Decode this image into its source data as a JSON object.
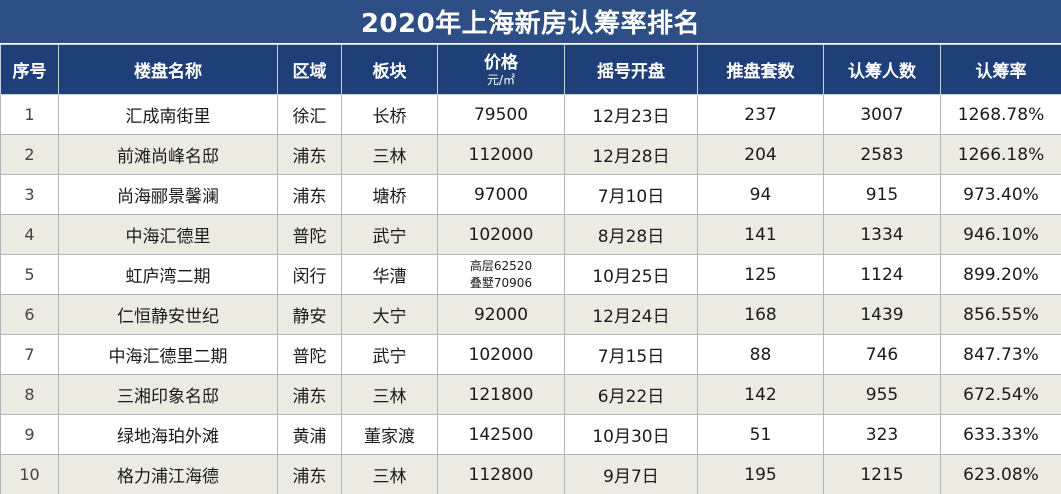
{
  "title": "2020年上海新房认筹率排名",
  "headers": {
    "rank": "序号",
    "name": "楼盘名称",
    "district": "区域",
    "block": "板块",
    "price": "价格",
    "price_unit": "元/㎡",
    "lottery": "摇号开盘",
    "units": "推盘套数",
    "subscribers": "认筹人数",
    "rate": "认筹率"
  },
  "rows": [
    {
      "rank": "1",
      "name": "汇成南街里",
      "district": "徐汇",
      "block": "长桥",
      "price": "79500",
      "price_line2": "",
      "lottery": "12月23日",
      "units": "237",
      "subscribers": "3007",
      "rate": "1268.78%"
    },
    {
      "rank": "2",
      "name": "前滩尚峰名邸",
      "district": "浦东",
      "block": "三林",
      "price": "112000",
      "price_line2": "",
      "lottery": "12月28日",
      "units": "204",
      "subscribers": "2583",
      "rate": "1266.18%"
    },
    {
      "rank": "3",
      "name": "尚海郦景馨澜",
      "district": "浦东",
      "block": "塘桥",
      "price": "97000",
      "price_line2": "",
      "lottery": "7月10日",
      "units": "94",
      "subscribers": "915",
      "rate": "973.40%"
    },
    {
      "rank": "4",
      "name": "中海汇德里",
      "district": "普陀",
      "block": "武宁",
      "price": "102000",
      "price_line2": "",
      "lottery": "8月28日",
      "units": "141",
      "subscribers": "1334",
      "rate": "946.10%"
    },
    {
      "rank": "5",
      "name": "虹庐湾二期",
      "district": "闵行",
      "block": "华漕",
      "price": "高层62520",
      "price_line2": "叠墅70906",
      "lottery": "10月25日",
      "units": "125",
      "subscribers": "1124",
      "rate": "899.20%"
    },
    {
      "rank": "6",
      "name": "仁恒静安世纪",
      "district": "静安",
      "block": "大宁",
      "price": "92000",
      "price_line2": "",
      "lottery": "12月24日",
      "units": "168",
      "subscribers": "1439",
      "rate": "856.55%"
    },
    {
      "rank": "7",
      "name": "中海汇德里二期",
      "district": "普陀",
      "block": "武宁",
      "price": "102000",
      "price_line2": "",
      "lottery": "7月15日",
      "units": "88",
      "subscribers": "746",
      "rate": "847.73%"
    },
    {
      "rank": "8",
      "name": "三湘印象名邸",
      "district": "浦东",
      "block": "三林",
      "price": "121800",
      "price_line2": "",
      "lottery": "6月22日",
      "units": "142",
      "subscribers": "955",
      "rate": "672.54%"
    },
    {
      "rank": "9",
      "name": "绿地海珀外滩",
      "district": "黄浦",
      "block": "董家渡",
      "price": "142500",
      "price_line2": "",
      "lottery": "10月30日",
      "units": "51",
      "subscribers": "323",
      "rate": "633.33%"
    },
    {
      "rank": "10",
      "name": "格力浦江海德",
      "district": "浦东",
      "block": "三林",
      "price": "112800",
      "price_line2": "",
      "lottery": "9月7日",
      "units": "195",
      "subscribers": "1215",
      "rate": "623.08%"
    }
  ]
}
